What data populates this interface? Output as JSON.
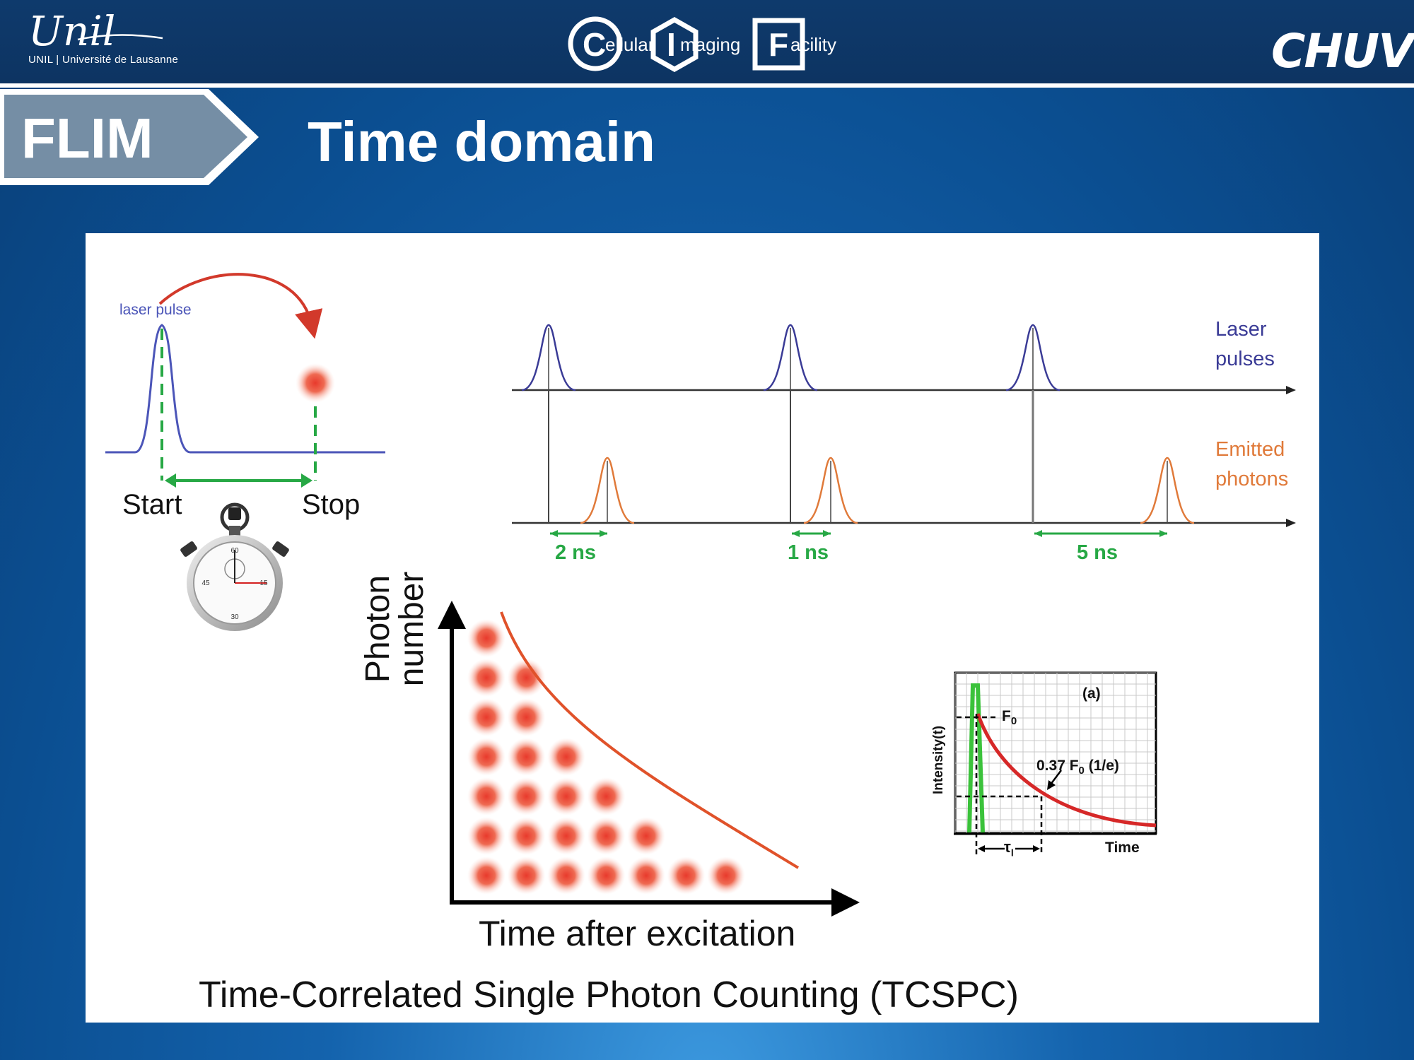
{
  "header": {
    "unil_logo": "Unil",
    "unil_subtitle": "UNIL | Université de Lausanne",
    "facility": {
      "c_letter": "C",
      "c_rest": "ellular",
      "i_letter": "I",
      "i_rest": "maging",
      "f_letter": "F",
      "f_rest": "acility"
    },
    "chuv_logo": "CHUV"
  },
  "section_tab": "FLIM",
  "title": "Time domain",
  "diagram": {
    "laser_pulse_label": "laser pulse",
    "start_label": "Start",
    "stop_label": "Stop",
    "laser_pulses_label": [
      "Laser",
      "pulses"
    ],
    "emitted_photons_label": [
      "Emitted",
      "photons"
    ],
    "delays": [
      "2 ns",
      "1 ns",
      "5 ns"
    ],
    "photon_axis_label": [
      "Photon",
      "number"
    ],
    "time_axis_label": "Time after excitation",
    "histogram_counts": [
      7,
      6,
      4,
      3,
      2,
      1,
      1
    ],
    "decay_plot": {
      "panel_label": "(a)",
      "y_label": "Intensity(t)",
      "x_label": "Time",
      "f0_label": "F",
      "f0_sub": "0",
      "level_label_a": "0.37 F",
      "level_label_sub": "0",
      "level_label_b": "(1/e)",
      "tau_label": "τ",
      "tau_sub": "l"
    },
    "colors": {
      "laser": "#3a3b96",
      "emission": "#e07a3a",
      "delay": "#27a845",
      "curve": "#e0522a"
    }
  },
  "caption": "Time-Correlated Single Photon Counting (TCSPC)"
}
